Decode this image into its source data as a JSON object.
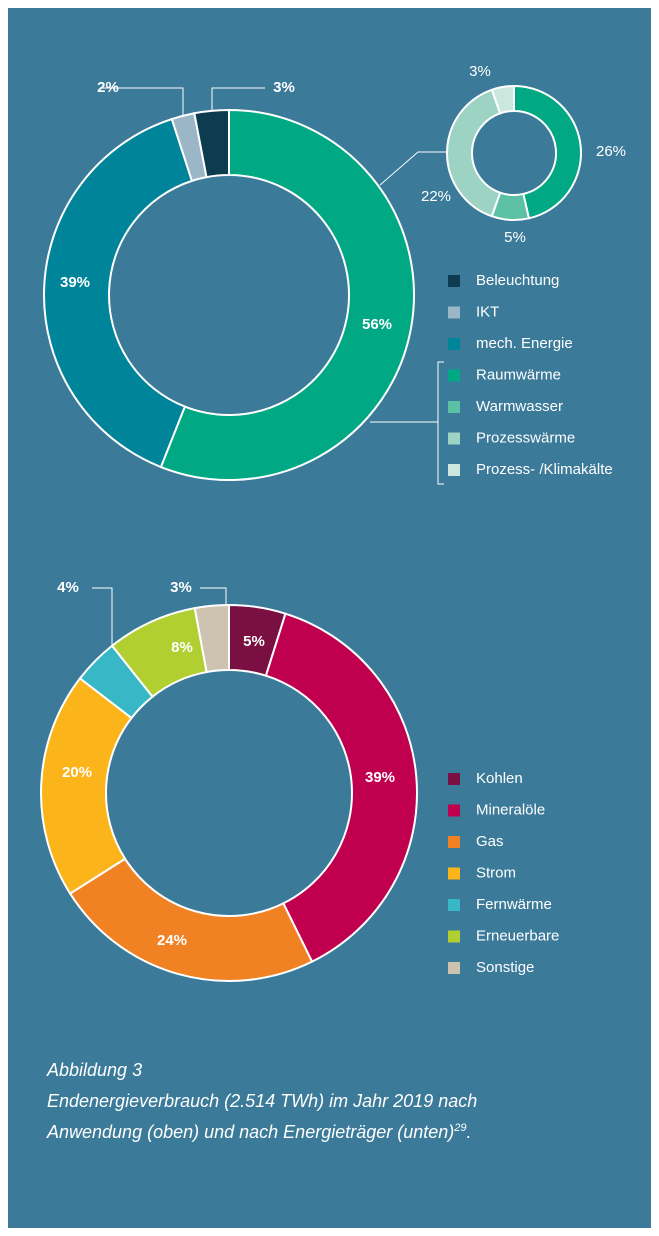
{
  "chart_data": [
    {
      "type": "donut",
      "categories": [
        "Raumwärme",
        "mech. Energie",
        "IKT",
        "Beleuchtung"
      ],
      "values": [
        56,
        39,
        2,
        3
      ],
      "value_labels": [
        "56%",
        "39%",
        "2%",
        "3%"
      ],
      "colors": [
        "#00a984",
        "#00849a",
        "#9bb7c7",
        "#0d3b4f"
      ],
      "legend": [
        {
          "name": "Beleuchtung",
          "color": "#0d3b4f"
        },
        {
          "name": "IKT",
          "color": "#9bb7c7"
        },
        {
          "name": "mech. Energie",
          "color": "#00849a"
        },
        {
          "name": "Raumwärme",
          "color": "#00a984"
        },
        {
          "name": "Warmwasser",
          "color": "#5cc0a5"
        },
        {
          "name": "Prozesswärme",
          "color": "#9dd3c3"
        },
        {
          "name": "Prozess- /Klimakälte",
          "color": "#cbe7de"
        }
      ]
    },
    {
      "type": "donut",
      "categories": [
        "Raumwärme",
        "Warmwasser",
        "Prozesswärme",
        "Prozess- /Klimakälte"
      ],
      "values": [
        26,
        5,
        22,
        3
      ],
      "value_labels": [
        "26%",
        "5%",
        "22%",
        "3%"
      ],
      "colors": [
        "#00a984",
        "#5cc0a5",
        "#9dd3c3",
        "#cbe7de"
      ]
    },
    {
      "type": "donut",
      "categories": [
        "Kohlen",
        "Mineralöle",
        "Gas",
        "Strom",
        "Fernwärme",
        "Erneuerbare",
        "Sonstige"
      ],
      "values": [
        5,
        39,
        24,
        20,
        4,
        8,
        3
      ],
      "value_labels": [
        "5%",
        "39%",
        "24%",
        "20%",
        "4%",
        "8%",
        "3%"
      ],
      "colors": [
        "#7a1042",
        "#c0004f",
        "#f08224",
        "#fbb51a",
        "#38b7c7",
        "#b2cf32",
        "#cdc3b0"
      ]
    }
  ],
  "caption": {
    "label": "Abbildung 3",
    "lines": [
      "Endenergieverbrauch (2.514 TWh) im Jahr 2019 nach",
      "Anwendung (oben) und nach Energieträger (unten)"
    ],
    "footnote": "29",
    "end": "."
  }
}
